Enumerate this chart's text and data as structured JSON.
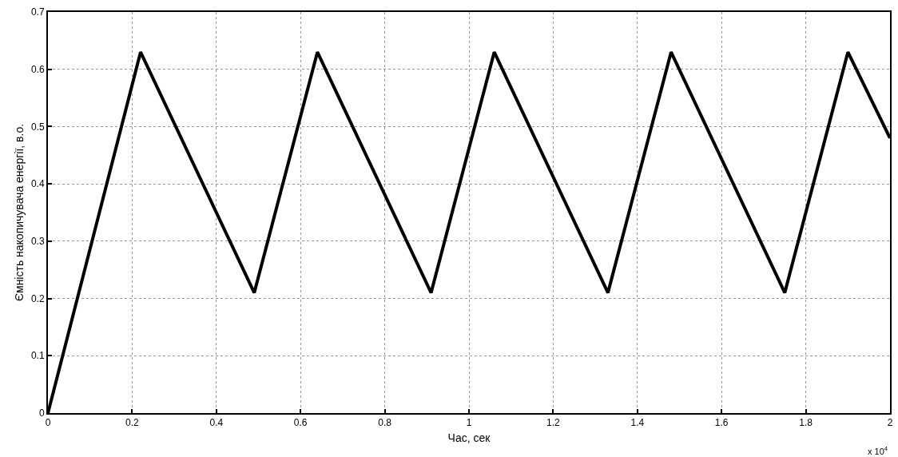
{
  "chart_data": {
    "type": "line",
    "xlabel": "Час, сек",
    "ylabel": "Ємність накопичувача енергії, в.о.",
    "x": [
      0,
      0.22,
      0.49,
      0.64,
      0.91,
      1.06,
      1.33,
      1.48,
      1.75,
      1.9,
      2
    ],
    "series": [
      {
        "color": "#000000",
        "values": [
          0,
          0.63,
          0.21,
          0.63,
          0.21,
          0.63,
          0.21,
          0.63,
          0.21,
          0.63,
          0.48
        ]
      }
    ],
    "xlim": [
      0,
      2
    ],
    "xticks": [
      0,
      0.2,
      0.4,
      0.6,
      0.8,
      1,
      1.2,
      1.4,
      1.6,
      1.8,
      2
    ],
    "ylim": [
      0,
      0.7
    ],
    "yticks": [
      0,
      0.1,
      0.2,
      0.3,
      0.4,
      0.5,
      0.6,
      0.7
    ],
    "annotations": [
      "x 10$^{4}$"
    ],
    "grid": true,
    "line_style": "solid"
  }
}
